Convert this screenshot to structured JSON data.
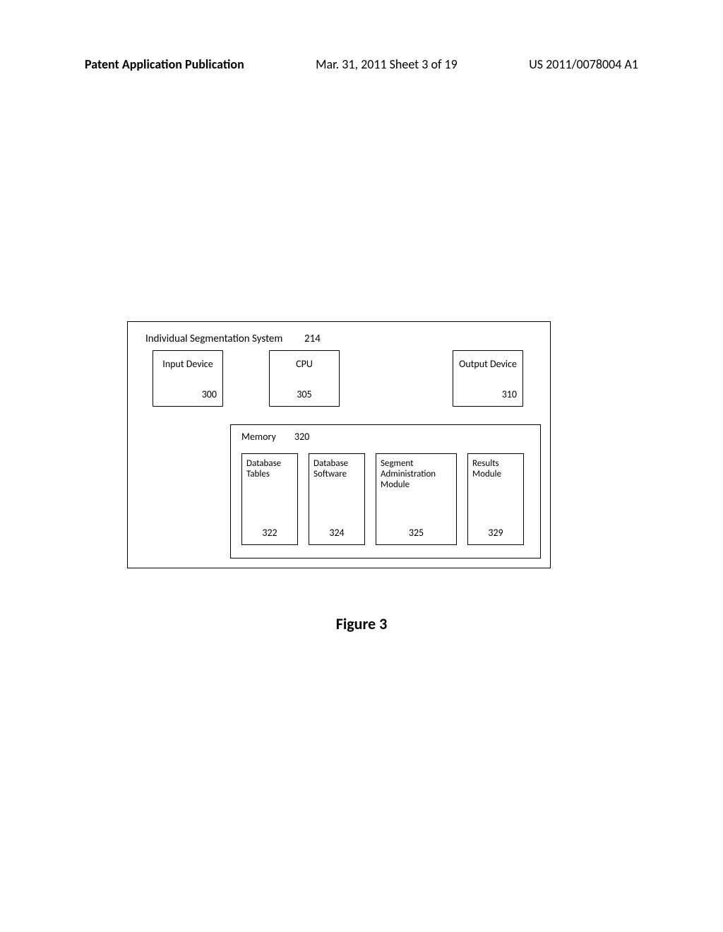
{
  "header": {
    "left": "Patent Application Publication",
    "center": "Mar. 31, 2011  Sheet 3 of 19",
    "right": "US 2011/0078004 A1"
  },
  "system": {
    "title": "Individual Segmentation System",
    "ref": "214"
  },
  "boxes": {
    "input": {
      "label": "Input Device",
      "ref": "300"
    },
    "cpu": {
      "label": "CPU",
      "ref": "305"
    },
    "output": {
      "label": "Output Device",
      "ref": "310"
    }
  },
  "memory": {
    "label": "Memory",
    "ref": "320",
    "modules": {
      "db_tables": {
        "label": "Database Tables",
        "ref": "322"
      },
      "db_soft": {
        "label": "Database Software",
        "ref": "324"
      },
      "seg_admin": {
        "label": "Segment Administration Module",
        "ref": "325"
      },
      "results": {
        "label": "Results Module",
        "ref": "329"
      }
    }
  },
  "figure_caption": "Figure 3"
}
